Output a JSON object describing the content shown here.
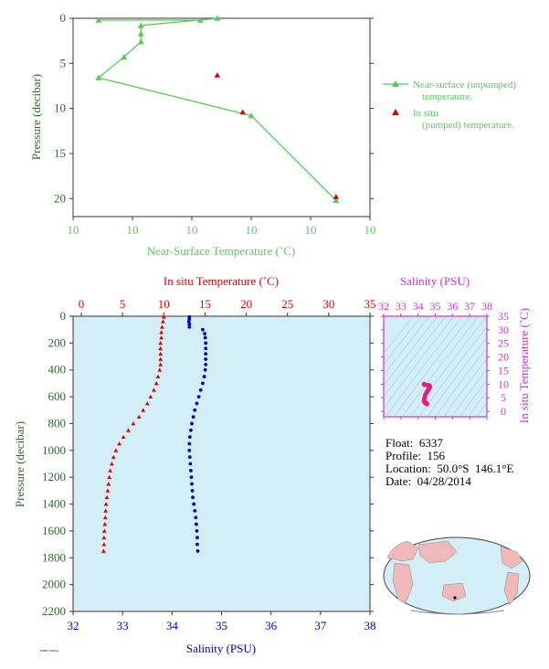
{
  "colors": {
    "near_surface": "#5cc85c",
    "in_situ_temp": "#e00000",
    "salinity": "#0000cc",
    "ts_frame": "#cc33cc",
    "panel_bg": "#d4eef8",
    "axis_text": "#336633",
    "ts_points": "#e0207a",
    "land": "#f0b8b8",
    "ocean": "#d4eef8"
  },
  "float_info": {
    "float": "Float:  6337",
    "profile": "Profile:  156",
    "location": "Location:  50.0°S  146.1°E",
    "date": "Date:  04/28/2014"
  },
  "footer_tiny": "PMEL/NOAA",
  "chart_data": [
    {
      "type": "line",
      "xlabel": "Near-Surface Temperature (˚C)",
      "ylabel": "Pressure (decibar)",
      "ylim": [
        0,
        22
      ],
      "y_ticks": [
        0,
        5,
        10,
        15,
        20
      ],
      "x_tick_labels": [
        "10",
        "10",
        "10",
        "10",
        "10",
        "10"
      ],
      "y_inverted": true,
      "series": [
        {
          "name": "Near-surface (unpumped) temperature.",
          "marker": "triangle",
          "points": [
            [
              9.78,
              0.2
            ],
            [
              9.9,
              0.2
            ],
            [
              9.92,
              0.0
            ],
            [
              9.83,
              0.8
            ],
            [
              9.83,
              1.7
            ],
            [
              9.83,
              2.6
            ],
            [
              9.81,
              4.3
            ],
            [
              9.78,
              6.6
            ],
            [
              9.96,
              10.8
            ],
            [
              10.06,
              20.2
            ]
          ]
        },
        {
          "name": "In situ (pumped) temperature.",
          "marker": "triangle",
          "points": [
            [
              9.92,
              6.3
            ],
            [
              9.95,
              10.4
            ],
            [
              10.06,
              19.8
            ]
          ]
        }
      ],
      "x_data_range": [
        9.75,
        10.1
      ]
    },
    {
      "type": "scatter",
      "title_top": "In situ Temperature (˚C)",
      "xlabel": "Salinity (PSU)",
      "ylabel": "Pressure (decibar)",
      "temp_ticks": [
        0,
        5,
        10,
        15,
        20,
        25,
        30,
        35
      ],
      "sal_ticks": [
        32,
        33,
        34,
        35,
        36,
        37,
        38
      ],
      "p_ticks": [
        0,
        200,
        400,
        600,
        800,
        1000,
        1200,
        1400,
        1600,
        1800,
        2000,
        2200
      ],
      "temperature_profile": [
        [
          10.0,
          5
        ],
        [
          9.9,
          40
        ],
        [
          9.8,
          80
        ],
        [
          9.7,
          120
        ],
        [
          9.7,
          160
        ],
        [
          9.6,
          200
        ],
        [
          9.6,
          240
        ],
        [
          9.6,
          280
        ],
        [
          9.6,
          320
        ],
        [
          9.6,
          360
        ],
        [
          9.5,
          400
        ],
        [
          9.3,
          450
        ],
        [
          9.1,
          500
        ],
        [
          8.8,
          550
        ],
        [
          8.4,
          600
        ],
        [
          8.0,
          650
        ],
        [
          7.5,
          700
        ],
        [
          7.0,
          750
        ],
        [
          6.3,
          800
        ],
        [
          5.7,
          850
        ],
        [
          5.1,
          900
        ],
        [
          4.6,
          950
        ],
        [
          4.2,
          1000
        ],
        [
          3.9,
          1050
        ],
        [
          3.7,
          1100
        ],
        [
          3.5,
          1150
        ],
        [
          3.4,
          1200
        ],
        [
          3.3,
          1250
        ],
        [
          3.2,
          1300
        ],
        [
          3.1,
          1350
        ],
        [
          3.0,
          1400
        ],
        [
          2.95,
          1450
        ],
        [
          2.9,
          1500
        ],
        [
          2.85,
          1550
        ],
        [
          2.8,
          1600
        ],
        [
          2.75,
          1650
        ],
        [
          2.75,
          1700
        ],
        [
          2.7,
          1750
        ]
      ],
      "salinity_profile": [
        [
          34.35,
          5
        ],
        [
          34.35,
          20
        ],
        [
          34.34,
          40
        ],
        [
          34.35,
          60
        ],
        [
          34.35,
          80
        ],
        [
          34.62,
          100
        ],
        [
          34.66,
          130
        ],
        [
          34.67,
          160
        ],
        [
          34.68,
          200
        ],
        [
          34.68,
          240
        ],
        [
          34.68,
          280
        ],
        [
          34.68,
          320
        ],
        [
          34.68,
          360
        ],
        [
          34.67,
          400
        ],
        [
          34.65,
          450
        ],
        [
          34.62,
          500
        ],
        [
          34.58,
          550
        ],
        [
          34.54,
          600
        ],
        [
          34.5,
          650
        ],
        [
          34.46,
          700
        ],
        [
          34.43,
          750
        ],
        [
          34.4,
          800
        ],
        [
          34.38,
          850
        ],
        [
          34.36,
          900
        ],
        [
          34.35,
          950
        ],
        [
          34.35,
          1000
        ],
        [
          34.36,
          1050
        ],
        [
          34.37,
          1100
        ],
        [
          34.38,
          1150
        ],
        [
          34.39,
          1200
        ],
        [
          34.4,
          1250
        ],
        [
          34.41,
          1300
        ],
        [
          34.42,
          1350
        ],
        [
          34.44,
          1400
        ],
        [
          34.46,
          1450
        ],
        [
          34.48,
          1500
        ],
        [
          34.49,
          1550
        ],
        [
          34.5,
          1600
        ],
        [
          34.51,
          1650
        ],
        [
          34.51,
          1700
        ],
        [
          34.52,
          1750
        ]
      ],
      "xlim_salinity": [
        32,
        38
      ],
      "xlim_temp": [
        -1,
        35
      ],
      "ylim": [
        0,
        2200
      ]
    },
    {
      "type": "scatter",
      "xlabel": "Salinity (PSU)",
      "ylabel": "In situ Temperature (˚C)",
      "x_ticks": [
        32,
        33,
        34,
        35,
        36,
        37,
        38
      ],
      "y_ticks": [
        0,
        5,
        10,
        15,
        20,
        25,
        30,
        35
      ],
      "xlim": [
        32,
        38
      ],
      "ylim": [
        -2,
        35
      ],
      "points": [
        [
          34.35,
          10.0
        ],
        [
          34.38,
          9.8
        ],
        [
          34.55,
          9.6
        ],
        [
          34.66,
          9.5
        ],
        [
          34.68,
          9.0
        ],
        [
          34.65,
          8.5
        ],
        [
          34.58,
          7.8
        ],
        [
          34.5,
          7.0
        ],
        [
          34.42,
          6.0
        ],
        [
          34.38,
          5.0
        ],
        [
          34.35,
          4.2
        ],
        [
          34.37,
          3.6
        ],
        [
          34.4,
          3.2
        ],
        [
          34.45,
          3.0
        ],
        [
          34.5,
          2.8
        ],
        [
          34.52,
          2.7
        ]
      ]
    }
  ]
}
